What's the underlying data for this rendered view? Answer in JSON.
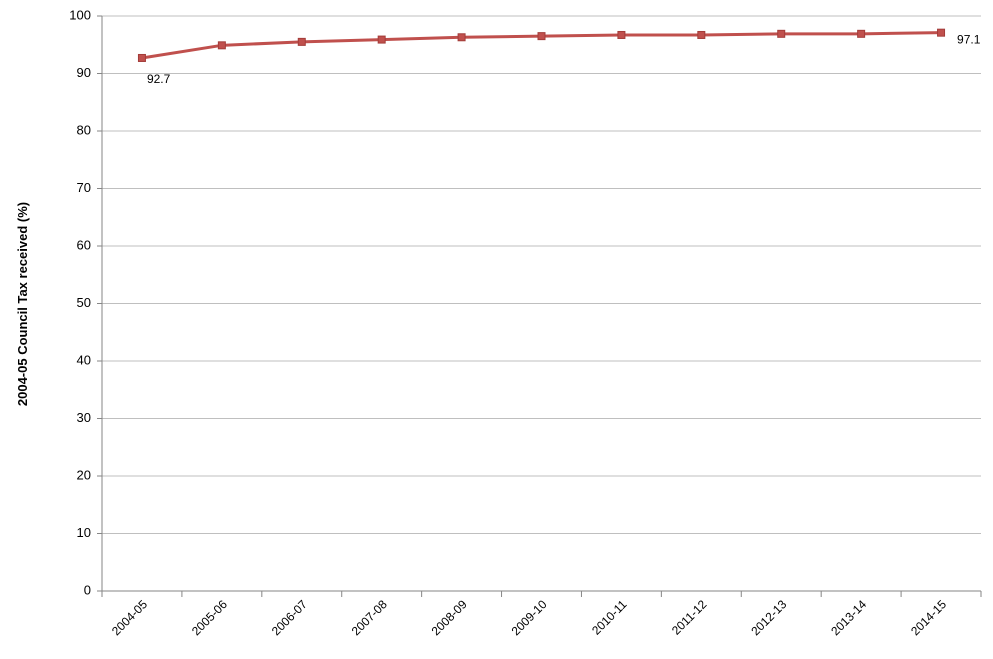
{
  "chart_data": {
    "type": "line",
    "title": "",
    "xlabel": "",
    "ylabel": "2004-05 Council Tax  received (%)",
    "ylim": [
      0,
      100
    ],
    "yticks": [
      0,
      10,
      20,
      30,
      40,
      50,
      60,
      70,
      80,
      90,
      100
    ],
    "grid": true,
    "legend": "none",
    "categories": [
      "2004-05",
      "2005-06",
      "2006-07",
      "2007-08",
      "2008-09",
      "2009-10",
      "2010-11",
      "2011-12",
      "2012-13",
      "2013-14",
      "2014-15"
    ],
    "series": [
      {
        "values": [
          92.7,
          94.9,
          95.5,
          95.9,
          96.3,
          96.5,
          96.7,
          96.7,
          96.9,
          96.9,
          97.1
        ],
        "color": "#c0504d"
      }
    ],
    "data_labels": [
      {
        "index": 0,
        "text": "92.7"
      },
      {
        "index": 10,
        "text": "97.1"
      }
    ]
  }
}
